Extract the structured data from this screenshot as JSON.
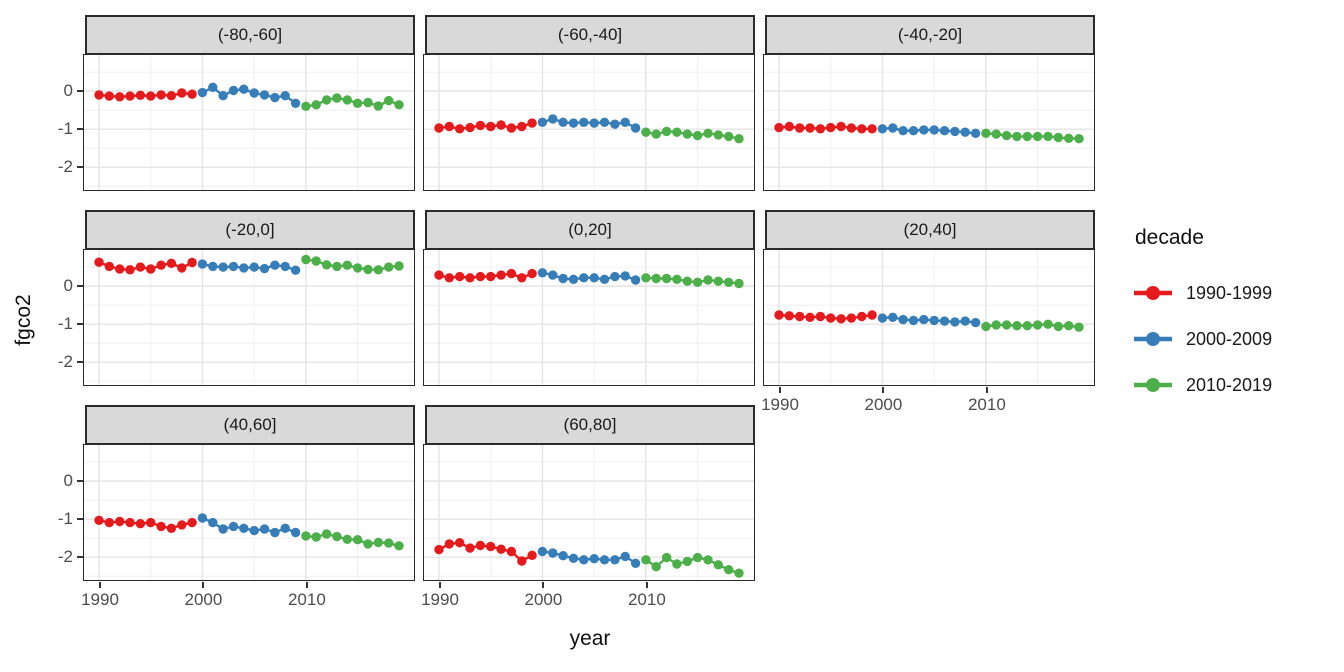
{
  "chart_data": {
    "type": "scatter",
    "xlabel": "year",
    "ylabel": "fgco2",
    "x_ticks": [
      1990,
      2000,
      2010
    ],
    "y_ticks": [
      0,
      -1,
      -2
    ],
    "x_minor": [
      1995,
      2005,
      2015
    ],
    "y_minor": [
      0.5,
      -0.5,
      -1.5,
      -2.5
    ],
    "xlim": [
      1988.55,
      2020.45
    ],
    "ylim": [
      -2.6,
      0.95
    ],
    "grid": "on",
    "legend_position": "right",
    "x_years": [
      1990,
      1991,
      1992,
      1993,
      1994,
      1995,
      1996,
      1997,
      1998,
      1999,
      2000,
      2001,
      2002,
      2003,
      2004,
      2005,
      2006,
      2007,
      2008,
      2009,
      2010,
      2011,
      2012,
      2013,
      2014,
      2015,
      2016,
      2017,
      2018,
      2019
    ],
    "legend": {
      "title": "decade",
      "entries": [
        {
          "label": "1990-1999",
          "color": "#E41A1C"
        },
        {
          "label": "2000-2009",
          "color": "#377EB8"
        },
        {
          "label": "2010-2019",
          "color": "#4DAF4A"
        }
      ]
    },
    "facets": [
      {
        "label": "(-80,-60]",
        "values": [
          -0.1,
          -0.13,
          -0.15,
          -0.13,
          -0.11,
          -0.13,
          -0.1,
          -0.12,
          -0.05,
          -0.08,
          -0.04,
          0.1,
          -0.12,
          0.02,
          0.05,
          -0.05,
          -0.1,
          -0.17,
          -0.12,
          -0.32,
          -0.4,
          -0.36,
          -0.23,
          -0.18,
          -0.23,
          -0.32,
          -0.3,
          -0.39,
          -0.25,
          -0.36
        ]
      },
      {
        "label": "(-60,-40]",
        "values": [
          -0.97,
          -0.93,
          -0.99,
          -0.96,
          -0.9,
          -0.93,
          -0.89,
          -0.97,
          -0.93,
          -0.84,
          -0.82,
          -0.73,
          -0.82,
          -0.84,
          -0.82,
          -0.84,
          -0.82,
          -0.87,
          -0.82,
          -0.97,
          -1.08,
          -1.13,
          -1.06,
          -1.08,
          -1.13,
          -1.17,
          -1.11,
          -1.15,
          -1.19,
          -1.25
        ]
      },
      {
        "label": "(-40,-20]",
        "values": [
          -0.96,
          -0.93,
          -0.97,
          -0.97,
          -0.99,
          -0.96,
          -0.93,
          -0.97,
          -0.99,
          -0.99,
          -0.99,
          -0.97,
          -1.04,
          -1.04,
          -1.02,
          -1.02,
          -1.04,
          -1.06,
          -1.08,
          -1.11,
          -1.11,
          -1.13,
          -1.17,
          -1.19,
          -1.19,
          -1.19,
          -1.19,
          -1.22,
          -1.24,
          -1.25
        ]
      },
      {
        "label": "(-20,0]",
        "values": [
          0.63,
          0.52,
          0.45,
          0.43,
          0.5,
          0.45,
          0.55,
          0.6,
          0.48,
          0.62,
          0.58,
          0.52,
          0.5,
          0.52,
          0.48,
          0.5,
          0.46,
          0.55,
          0.52,
          0.42,
          0.7,
          0.66,
          0.56,
          0.52,
          0.55,
          0.48,
          0.44,
          0.43,
          0.5,
          0.53
        ]
      },
      {
        "label": "(0,20]",
        "values": [
          0.29,
          0.22,
          0.25,
          0.22,
          0.25,
          0.25,
          0.29,
          0.33,
          0.22,
          0.33,
          0.35,
          0.29,
          0.2,
          0.18,
          0.22,
          0.22,
          0.18,
          0.25,
          0.27,
          0.16,
          0.22,
          0.2,
          0.2,
          0.18,
          0.13,
          0.1,
          0.16,
          0.13,
          0.1,
          0.07
        ]
      },
      {
        "label": "(20,40]",
        "values": [
          -0.76,
          -0.78,
          -0.8,
          -0.82,
          -0.8,
          -0.84,
          -0.86,
          -0.84,
          -0.8,
          -0.76,
          -0.84,
          -0.82,
          -0.88,
          -0.9,
          -0.88,
          -0.9,
          -0.92,
          -0.94,
          -0.92,
          -0.96,
          -1.06,
          -1.02,
          -1.02,
          -1.04,
          -1.04,
          -1.02,
          -1.0,
          -1.06,
          -1.04,
          -1.08
        ]
      },
      {
        "label": "(40,60]",
        "values": [
          -1.03,
          -1.09,
          -1.06,
          -1.09,
          -1.12,
          -1.09,
          -1.19,
          -1.24,
          -1.15,
          -1.09,
          -0.97,
          -1.09,
          -1.26,
          -1.19,
          -1.24,
          -1.3,
          -1.26,
          -1.35,
          -1.24,
          -1.35,
          -1.44,
          -1.47,
          -1.39,
          -1.46,
          -1.53,
          -1.54,
          -1.65,
          -1.61,
          -1.63,
          -1.7
        ]
      },
      {
        "label": "(60,80]",
        "values": [
          -1.8,
          -1.65,
          -1.62,
          -1.76,
          -1.69,
          -1.72,
          -1.79,
          -1.85,
          -2.1,
          -1.95,
          -1.85,
          -1.89,
          -1.96,
          -2.03,
          -2.07,
          -2.04,
          -2.07,
          -2.07,
          -1.98,
          -2.16,
          -2.07,
          -2.25,
          -2.01,
          -2.18,
          -2.11,
          -2.01,
          -2.07,
          -2.2,
          -2.33,
          -2.42
        ]
      }
    ],
    "y_axis_facet_indices": [
      0,
      3,
      6
    ],
    "x_axis_facet_indices": [
      5,
      6,
      7
    ]
  },
  "colors": {
    "strip_bg": "#d9d9d9",
    "panel_border": "#2b2b2b",
    "grid_major": "#e4e4e4",
    "grid_minor": "#f1f1f1",
    "tick_text": "#4d4d4d"
  }
}
